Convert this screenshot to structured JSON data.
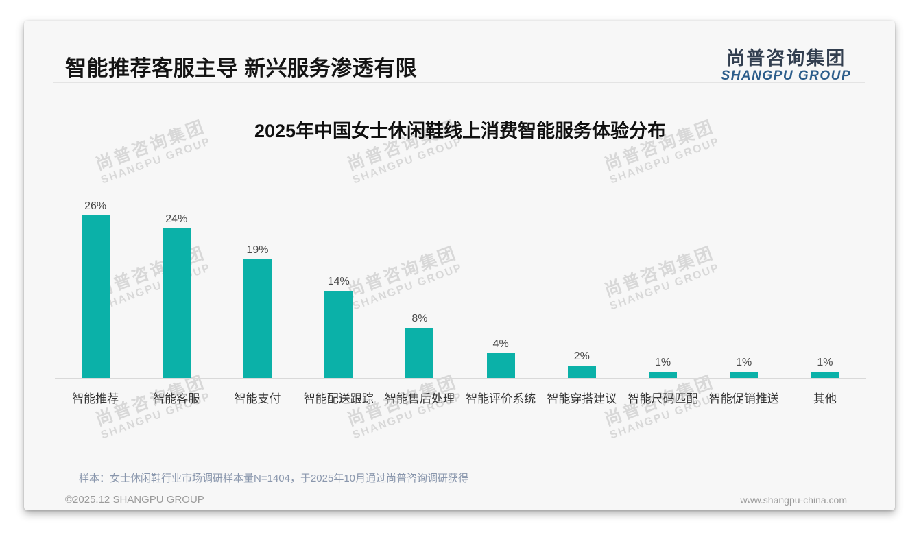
{
  "header": {
    "title": "智能推荐客服主导 新兴服务渗透有限"
  },
  "logo": {
    "cn": "尚普咨询集团",
    "en": "SHANGPU GROUP"
  },
  "watermark": {
    "cn": "尚普咨询集团",
    "en": "SHANGPU GROUP"
  },
  "chart_data": {
    "type": "bar",
    "title": "2025年中国女士休闲鞋线上消费智能服务体验分布",
    "categories": [
      "智能推荐",
      "智能客服",
      "智能支付",
      "智能配送跟踪",
      "智能售后处理",
      "智能评价系统",
      "智能穿搭建议",
      "智能尺码匹配",
      "智能促销推送",
      "其他"
    ],
    "values": [
      26,
      24,
      19,
      14,
      8,
      4,
      2,
      1,
      1,
      1
    ],
    "unit": "%",
    "bar_color": "#0bb1a8",
    "ylim": [
      0,
      28
    ],
    "grid": false,
    "legend": false,
    "value_labels": "above bars",
    "xlabel": "",
    "ylabel": ""
  },
  "footer": {
    "note": "样本：女士休闲鞋行业市场调研样本量N=1404，于2025年10月通过尚普咨询调研获得",
    "copyright": "©2025.12 SHANGPU GROUP",
    "website": "www.shangpu-china.com"
  },
  "colors": {
    "bar": "#0bb1a8",
    "logo_cn": "#333f50",
    "logo_en": "#2b5c8a",
    "note_text": "#8a97ad",
    "card_bg": "#f7f7f7",
    "watermark": "#d8d8d8"
  }
}
